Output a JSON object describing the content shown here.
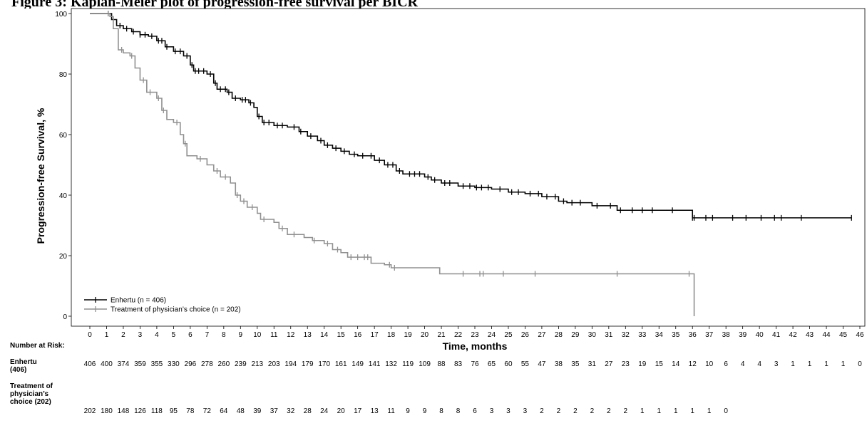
{
  "figure": {
    "caption": "Figure 3: Kaplan-Meier plot of progression-free survival per BICR"
  },
  "chart_data": {
    "type": "line",
    "title": "Figure 3: Kaplan-Meier plot of progression-free survival per BICR",
    "xlabel": "Time, months",
    "ylabel": "Progression-free Survival, %",
    "xlim": [
      0,
      46
    ],
    "ylim": [
      0,
      100
    ],
    "x_ticks": [
      0,
      1,
      2,
      3,
      4,
      5,
      6,
      7,
      8,
      9,
      10,
      11,
      12,
      13,
      14,
      15,
      16,
      17,
      18,
      19,
      20,
      21,
      22,
      23,
      24,
      25,
      26,
      27,
      28,
      29,
      30,
      31,
      32,
      33,
      34,
      35,
      36,
      37,
      38,
      39,
      40,
      41,
      42,
      43,
      44,
      45,
      46
    ],
    "y_ticks": [
      0,
      20,
      40,
      60,
      80,
      100
    ],
    "grid": false,
    "legend_position": "bottom-left",
    "series": [
      {
        "name": "Enhertu (n = 406)",
        "color": "#000000",
        "steps": [
          [
            0,
            100
          ],
          [
            1,
            100
          ],
          [
            1.3,
            98
          ],
          [
            1.6,
            96
          ],
          [
            2,
            95
          ],
          [
            2.5,
            94
          ],
          [
            3,
            93
          ],
          [
            3.5,
            92.5
          ],
          [
            4,
            91
          ],
          [
            4.5,
            89
          ],
          [
            5,
            87.5
          ],
          [
            5.6,
            86
          ],
          [
            6,
            83
          ],
          [
            6.2,
            81
          ],
          [
            7,
            80
          ],
          [
            7.4,
            77
          ],
          [
            7.6,
            75
          ],
          [
            8.2,
            74
          ],
          [
            8.5,
            72
          ],
          [
            9,
            71.5
          ],
          [
            9.5,
            70.5
          ],
          [
            9.8,
            69
          ],
          [
            10,
            66
          ],
          [
            10.3,
            64
          ],
          [
            11,
            63
          ],
          [
            11.8,
            62.5
          ],
          [
            12.5,
            61
          ],
          [
            13,
            59.5
          ],
          [
            13.6,
            58
          ],
          [
            14,
            56.5
          ],
          [
            14.5,
            55.5
          ],
          [
            15,
            54.5
          ],
          [
            15.5,
            53.5
          ],
          [
            16,
            53
          ],
          [
            17,
            51.5
          ],
          [
            17.6,
            50
          ],
          [
            18.3,
            48
          ],
          [
            18.7,
            47
          ],
          [
            20,
            46
          ],
          [
            20.4,
            45
          ],
          [
            21,
            44
          ],
          [
            22,
            43
          ],
          [
            23,
            42.5
          ],
          [
            24,
            42
          ],
          [
            25,
            41
          ],
          [
            26,
            40.5
          ],
          [
            27,
            39.5
          ],
          [
            28,
            38
          ],
          [
            28.5,
            37.5
          ],
          [
            30,
            36.5
          ],
          [
            31.5,
            35
          ],
          [
            35.5,
            35
          ],
          [
            36,
            32.5
          ],
          [
            45.5,
            32.5
          ]
        ],
        "censors": [
          1.1,
          1.4,
          1.8,
          2.2,
          2.6,
          3,
          3.3,
          3.7,
          4.1,
          4.3,
          4.6,
          5.1,
          5.4,
          5.8,
          6.1,
          6.3,
          6.5,
          6.8,
          7.2,
          7.5,
          7.8,
          8.1,
          8.3,
          8.7,
          9.1,
          9.3,
          9.6,
          10.1,
          10.4,
          10.7,
          11.2,
          11.5,
          12.2,
          12.6,
          13.2,
          13.8,
          14.2,
          14.7,
          15.2,
          15.8,
          16.3,
          16.8,
          17.3,
          17.8,
          18.1,
          18.5,
          19.1,
          19.4,
          19.7,
          20.2,
          20.6,
          21.2,
          21.5,
          22.3,
          22.7,
          23.1,
          23.4,
          23.8,
          24.5,
          25.2,
          25.6,
          26.3,
          26.8,
          27.3,
          27.8,
          28.3,
          28.8,
          29.3,
          30.3,
          31.1,
          31.7,
          32.4,
          33,
          33.6,
          34.8,
          36,
          36.1,
          36.8,
          37.2,
          38.4,
          39.2,
          40.1,
          40.9,
          41.3,
          42.5,
          45.5
        ]
      },
      {
        "name": "Treatment of physician’s choice (n = 202)",
        "color": "#909090",
        "steps": [
          [
            0,
            100
          ],
          [
            1.2,
            99
          ],
          [
            1.4,
            95
          ],
          [
            1.7,
            88
          ],
          [
            2,
            87
          ],
          [
            2.4,
            86
          ],
          [
            2.7,
            82
          ],
          [
            3,
            78
          ],
          [
            3.4,
            74
          ],
          [
            4,
            72
          ],
          [
            4.3,
            68
          ],
          [
            4.6,
            65
          ],
          [
            5,
            64
          ],
          [
            5.4,
            60
          ],
          [
            5.6,
            57
          ],
          [
            5.8,
            53
          ],
          [
            6.4,
            52
          ],
          [
            7,
            50
          ],
          [
            7.4,
            48
          ],
          [
            7.8,
            46
          ],
          [
            8.4,
            44
          ],
          [
            8.7,
            40
          ],
          [
            9,
            38
          ],
          [
            9.4,
            36
          ],
          [
            10,
            34
          ],
          [
            10.2,
            32
          ],
          [
            11,
            31
          ],
          [
            11.3,
            29
          ],
          [
            11.8,
            27
          ],
          [
            12.8,
            26
          ],
          [
            13.3,
            25
          ],
          [
            14,
            24
          ],
          [
            14.5,
            22
          ],
          [
            15,
            21
          ],
          [
            15.4,
            19.5
          ],
          [
            16.8,
            17.5
          ],
          [
            17.6,
            17
          ],
          [
            18,
            16
          ],
          [
            20.9,
            14
          ],
          [
            36.1,
            14
          ],
          [
            36.1,
            0
          ]
        ],
        "censors": [
          1.1,
          1.9,
          2.5,
          3.2,
          3.6,
          4.1,
          4.4,
          5.2,
          5.7,
          6.6,
          7.6,
          8.1,
          8.8,
          9.2,
          9.7,
          10.4,
          11.5,
          12.2,
          13.4,
          14.2,
          14.8,
          15.6,
          16,
          16.4,
          16.6,
          17.9,
          18.2,
          22.3,
          23.3,
          23.5,
          24.7,
          26.6,
          31.5,
          35.8
        ]
      }
    ]
  },
  "risk_table": {
    "heading": "Number at Risk:",
    "rows": [
      {
        "label_lines": [
          "Enhertu",
          "(406)"
        ],
        "values": [
          "406",
          "400",
          "374",
          "359",
          "355",
          "330",
          "296",
          "278",
          "260",
          "239",
          "213",
          "203",
          "194",
          "179",
          "170",
          "161",
          "149",
          "141",
          "132",
          "119",
          "109",
          "88",
          "83",
          "76",
          "65",
          "60",
          "55",
          "47",
          "38",
          "35",
          "31",
          "27",
          "23",
          "19",
          "15",
          "14",
          "12",
          "10",
          "6",
          "4",
          "4",
          "3",
          "1",
          "1",
          "1",
          "1",
          "0"
        ]
      },
      {
        "label_lines": [
          "Treatment of",
          "physician’s",
          "choice (202)"
        ],
        "values": [
          "202",
          "180",
          "148",
          "126",
          "118",
          "95",
          "78",
          "72",
          "64",
          "48",
          "39",
          "37",
          "32",
          "28",
          "24",
          "20",
          "17",
          "13",
          "11",
          "9",
          "9",
          "8",
          "8",
          "6",
          "3",
          "3",
          "3",
          "2",
          "2",
          "2",
          "2",
          "2",
          "2",
          "1",
          "1",
          "1",
          "1",
          "1",
          "0"
        ]
      }
    ]
  }
}
